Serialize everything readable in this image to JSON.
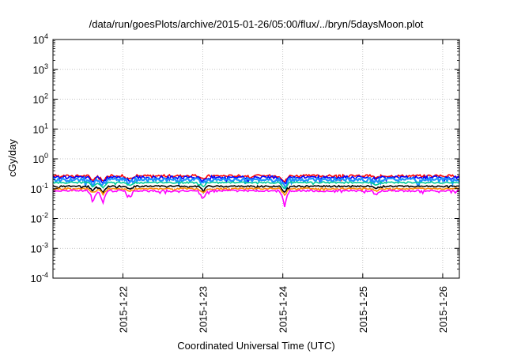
{
  "chart_data": {
    "type": "line",
    "title": "/data/run/goesPlots/archive/2015-01-26/05:00/flux/../bryn/5daysMoon.plot",
    "xlabel": "Coordinated Universal Time (UTC)",
    "ylabel": "cGy/day",
    "yscale": "log",
    "ylim": [
      0.0001,
      10000
    ],
    "xlim": [
      "2015-01-21 03:00",
      "2015-01-26 05:00"
    ],
    "grid": true,
    "y_ticks": [
      {
        "base": "10",
        "exp": "-4"
      },
      {
        "base": "10",
        "exp": "-3"
      },
      {
        "base": "10",
        "exp": "-2"
      },
      {
        "base": "10",
        "exp": "-1"
      },
      {
        "base": "10",
        "exp": "0"
      },
      {
        "base": "10",
        "exp": "1"
      },
      {
        "base": "10",
        "exp": "2"
      },
      {
        "base": "10",
        "exp": "3"
      },
      {
        "base": "10",
        "exp": "4"
      }
    ],
    "x_ticks": [
      "2015-1-22",
      "2015-1-23",
      "2015-1-24",
      "2015-1-25",
      "2015-1-26"
    ],
    "series": [
      {
        "color": "#ff0000",
        "level": 0.27,
        "variation": 0.18
      },
      {
        "color": "#0000ff",
        "level": 0.24,
        "variation": 0.22
      },
      {
        "color": "#1e90ff",
        "level": 0.2,
        "variation": 0.3
      },
      {
        "color": "#00cc99",
        "level": 0.16,
        "variation": 0.12
      },
      {
        "color": "#000000",
        "level": 0.12,
        "variation": 0.12
      },
      {
        "color": "#ff8c00",
        "level": 0.1,
        "variation": 0.12
      },
      {
        "color": "#ff00ff",
        "level": 0.085,
        "variation": 0.14
      }
    ],
    "dips": [
      {
        "date": "2015-01-21 15:00",
        "factor": 0.45
      },
      {
        "date": "2015-01-21 18:00",
        "factor": 0.35
      },
      {
        "date": "2015-01-22 02:00",
        "factor": 0.6
      },
      {
        "date": "2015-01-23 00:00",
        "factor": 0.5
      },
      {
        "date": "2015-01-24 00:30",
        "factor": 0.28
      },
      {
        "date": "2015-01-25 04:00",
        "factor": 0.7
      }
    ]
  }
}
